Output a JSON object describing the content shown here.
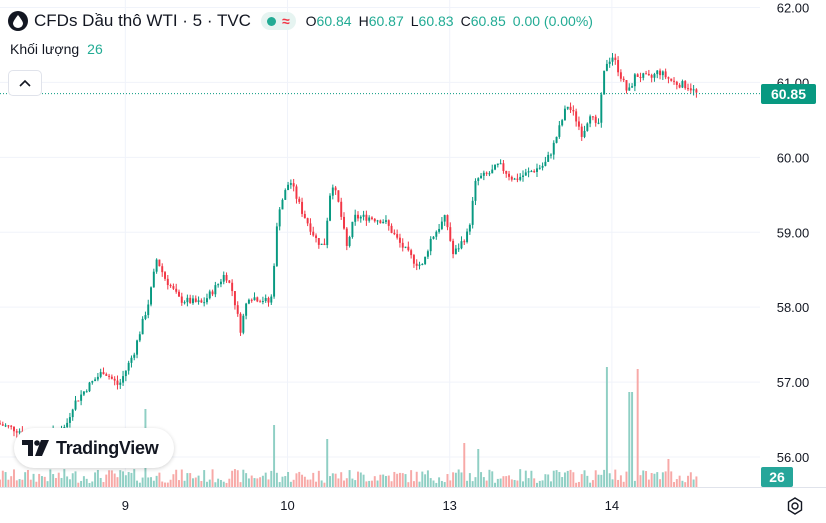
{
  "header": {
    "symbol_title": "CFDs Dầu thô WTI · 5 · TVC",
    "badge_symbol": "≈",
    "ohlc": [
      {
        "key": "O",
        "value": "60.84"
      },
      {
        "key": "H",
        "value": "60.87"
      },
      {
        "key": "L",
        "value": "60.83"
      },
      {
        "key": "C",
        "value": "60.85"
      }
    ],
    "change": "0.00 (0.00%)"
  },
  "volume_legend": {
    "label": "Khối lượng",
    "value": "26"
  },
  "branding": {
    "text": "TradingView"
  },
  "last_price_label": "60.85",
  "volume_price_label": "26",
  "colors": {
    "up": "#089981",
    "down": "#f23645",
    "grid": "#f0f3fa",
    "volume_up": "#8fcfc4",
    "volume_down": "#f7a9a7"
  },
  "chart_data": {
    "type": "candlestick",
    "y_ticks": [
      "62.00",
      "61.00",
      "60.00",
      "59.00",
      "58.00",
      "57.00",
      "56.00"
    ],
    "y_tick_values": [
      62,
      61,
      60,
      59,
      58,
      57,
      56
    ],
    "ylim": [
      55.6,
      62.1
    ],
    "x_ticks": [
      "9",
      "10",
      "13",
      "14"
    ],
    "x_tick_positions": [
      0.17,
      0.39,
      0.61,
      0.83
    ],
    "last_price": 60.85,
    "last_volume": 26,
    "price_path": [
      [
        0.0,
        56.45
      ],
      [
        0.03,
        56.35
      ],
      [
        0.06,
        56.25
      ],
      [
        0.09,
        56.4
      ],
      [
        0.1,
        56.7
      ],
      [
        0.12,
        56.95
      ],
      [
        0.14,
        57.15
      ],
      [
        0.16,
        56.95
      ],
      [
        0.18,
        57.4
      ],
      [
        0.2,
        58.1
      ],
      [
        0.21,
        58.65
      ],
      [
        0.22,
        58.4
      ],
      [
        0.24,
        58.1
      ],
      [
        0.27,
        58.05
      ],
      [
        0.29,
        58.3
      ],
      [
        0.3,
        58.45
      ],
      [
        0.31,
        58.2
      ],
      [
        0.32,
        57.7
      ],
      [
        0.33,
        58.15
      ],
      [
        0.35,
        58.1
      ],
      [
        0.36,
        58.05
      ],
      [
        0.37,
        59.3
      ],
      [
        0.385,
        59.7
      ],
      [
        0.4,
        59.3
      ],
      [
        0.42,
        58.9
      ],
      [
        0.43,
        58.8
      ],
      [
        0.44,
        59.7
      ],
      [
        0.45,
        59.35
      ],
      [
        0.46,
        58.8
      ],
      [
        0.47,
        59.2
      ],
      [
        0.49,
        59.2
      ],
      [
        0.51,
        59.15
      ],
      [
        0.53,
        58.85
      ],
      [
        0.55,
        58.6
      ],
      [
        0.56,
        58.55
      ],
      [
        0.57,
        58.9
      ],
      [
        0.59,
        59.2
      ],
      [
        0.6,
        58.7
      ],
      [
        0.62,
        59.0
      ],
      [
        0.63,
        59.7
      ],
      [
        0.65,
        59.8
      ],
      [
        0.66,
        59.9
      ],
      [
        0.68,
        59.7
      ],
      [
        0.7,
        59.8
      ],
      [
        0.72,
        59.9
      ],
      [
        0.73,
        60.1
      ],
      [
        0.75,
        60.7
      ],
      [
        0.76,
        60.55
      ],
      [
        0.77,
        60.3
      ],
      [
        0.78,
        60.6
      ],
      [
        0.79,
        60.35
      ],
      [
        0.8,
        61.25
      ],
      [
        0.81,
        61.35
      ],
      [
        0.82,
        61.1
      ],
      [
        0.83,
        60.85
      ],
      [
        0.84,
        61.1
      ],
      [
        0.86,
        61.05
      ],
      [
        0.87,
        61.15
      ],
      [
        0.89,
        61.0
      ],
      [
        0.91,
        60.95
      ],
      [
        0.92,
        60.85
      ]
    ],
    "volume_spikes": [
      [
        0.19,
        78
      ],
      [
        0.36,
        62
      ],
      [
        0.43,
        48
      ],
      [
        0.61,
        44
      ],
      [
        0.63,
        38
      ],
      [
        0.8,
        120
      ],
      [
        0.83,
        95
      ],
      [
        0.84,
        118
      ],
      [
        0.88,
        28
      ]
    ],
    "volume_max": 130
  }
}
